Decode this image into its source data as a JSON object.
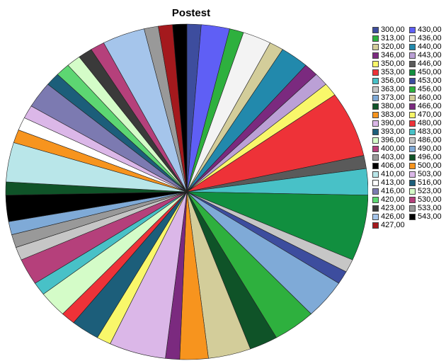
{
  "chart_data": {
    "type": "pie",
    "title": "Postest",
    "categories": [
      "300,00",
      "313,00",
      "320,00",
      "346,00",
      "350,00",
      "353,00",
      "356,00",
      "363,00",
      "373,00",
      "380,00",
      "383,00",
      "390,00",
      "393,00",
      "396,00",
      "400,00",
      "403,00",
      "406,00",
      "410,00",
      "413,00",
      "416,00",
      "420,00",
      "423,00",
      "426,00",
      "427,00",
      "430,00",
      "436,00",
      "440,00",
      "443,00",
      "446,00",
      "450,00",
      "453,00",
      "456,00",
      "460,00",
      "466,00",
      "470,00",
      "480,00",
      "483,00",
      "486,00",
      "490,00",
      "496,00",
      "500,00",
      "503,00",
      "516,00",
      "523,00",
      "530,00",
      "533,00",
      "543,00"
    ],
    "values": [
      1,
      1,
      1,
      1,
      1,
      5,
      2,
      1,
      3,
      2,
      2,
      4,
      2,
      2,
      2,
      1,
      2,
      3,
      1,
      2,
      1,
      1,
      3,
      1,
      2,
      2,
      2,
      1,
      1,
      5,
      1,
      3,
      3,
      1,
      1,
      1,
      1,
      1,
      1,
      1,
      1,
      1,
      1,
      1,
      1,
      1,
      1
    ],
    "colors": [
      "#3d4d9e",
      "#2eb03e",
      "#d3cd9a",
      "#7b2a7f",
      "#f9f76a",
      "#ee3238",
      "#48c1c7",
      "#c6c6c6",
      "#7faad7",
      "#0f5328",
      "#f7941e",
      "#dbb7e8",
      "#1c5e7a",
      "#d4fcc8",
      "#b5407b",
      "#999999",
      "#000000",
      "#b9e6e9",
      "#ffffff",
      "#7c7ab1",
      "#5dd672",
      "#3a3a3a",
      "#a5c5eb",
      "#a4191d",
      "#5f5ff5",
      "#f3f3f3",
      "#2289ac",
      "#bba0d6",
      "#5a5a5a",
      "#118f3f",
      "#3d4d9e",
      "#2eb03e",
      "#d3cd9a",
      "#7b2a7f",
      "#f9f76a",
      "#ee3238",
      "#48c1c7",
      "#c6c6c6",
      "#7faad7",
      "#0f5328",
      "#f7941e",
      "#dbb7e8",
      "#1c5e7a",
      "#d4fcc8",
      "#b5407b",
      "#999999",
      "#000000"
    ],
    "slice_order": [
      0,
      24,
      1,
      25,
      2,
      26,
      3,
      27,
      4,
      5,
      28,
      6,
      29,
      7,
      30,
      8,
      31,
      9,
      32,
      10,
      33,
      11,
      34,
      12,
      35,
      13,
      36,
      14,
      37,
      15,
      38,
      16,
      39,
      17,
      40,
      18,
      41,
      19,
      42,
      20,
      43,
      21,
      44,
      22,
      45,
      23,
      46
    ],
    "start_angle_deg": -90,
    "legend_position": "right"
  }
}
